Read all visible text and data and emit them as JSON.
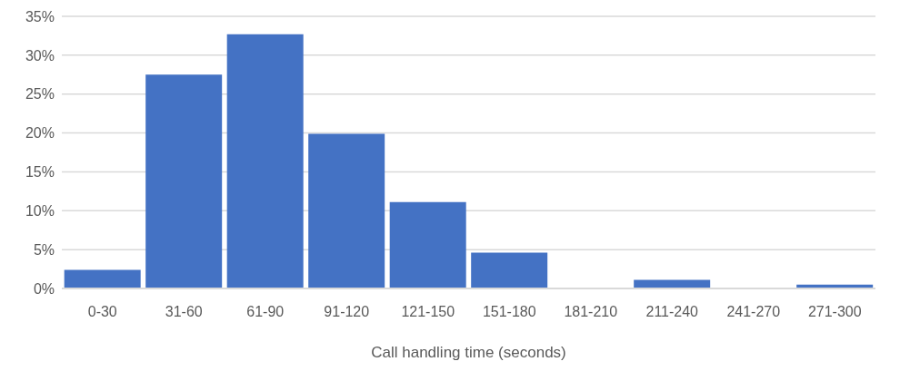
{
  "chart_data": {
    "type": "bar",
    "xlabel": "Call handling time (seconds)",
    "categories": [
      "0-30",
      "31-60",
      "61-90",
      "91-120",
      "121-150",
      "151-180",
      "181-210",
      "211-240",
      "241-270",
      "271-300"
    ],
    "values": [
      2.4,
      27.5,
      32.7,
      19.9,
      11.1,
      4.6,
      0,
      1.1,
      0,
      0.5
    ],
    "color": "#4472c4",
    "ylim": [
      0,
      35
    ],
    "yticks": [
      {
        "value": 0,
        "label": "0%"
      },
      {
        "value": 5,
        "label": "5%"
      },
      {
        "value": 10,
        "label": "10%"
      },
      {
        "value": 15,
        "label": "15%"
      },
      {
        "value": 20,
        "label": "20%"
      },
      {
        "value": 25,
        "label": "25%"
      },
      {
        "value": 30,
        "label": "30%"
      },
      {
        "value": 35,
        "label": "35%"
      }
    ],
    "grid": "y",
    "legend": false
  }
}
